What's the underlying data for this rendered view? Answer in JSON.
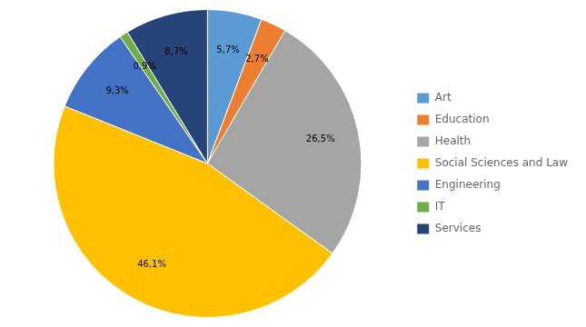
{
  "chart_data": {
    "type": "pie",
    "categories": [
      "Art",
      "Education",
      "Health",
      "Social Sciences and Law",
      "Engineering",
      "IT",
      "Services"
    ],
    "values": [
      5.7,
      2.7,
      26.5,
      46.1,
      9.3,
      0.9,
      8.7
    ],
    "value_labels": [
      "5,7%",
      "2,7%",
      "26,5%",
      "46,1%",
      "9,3%",
      "0,9%",
      "8,7%"
    ],
    "colors": [
      "#5b9bd5",
      "#ed7d31",
      "#a5a5a5",
      "#ffc000",
      "#4472c4",
      "#70ad47",
      "#264478"
    ],
    "data_labels": true,
    "legend": "right"
  }
}
